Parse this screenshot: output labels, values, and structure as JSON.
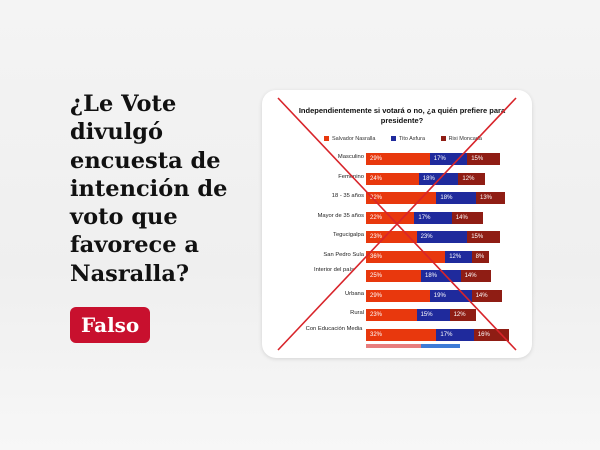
{
  "headline": "¿Le Vote divulgó encuesta de intención de voto que favorece a Nasralla?",
  "verdict": "Falso",
  "card": {
    "title": "Independientemente si votará o no, ¿a quién prefiere para presidente?",
    "legend": [
      {
        "label": "Salvador Nasralla",
        "color": "#e8380d"
      },
      {
        "label": "Tito Asfura",
        "color": "#1f2a9c"
      },
      {
        "label": "Rixi Moncada",
        "color": "#8f1d14"
      }
    ],
    "rows": [
      {
        "label": "Masculino",
        "values": [
          "29%",
          "17%",
          "15%"
        ],
        "shares": [
          29,
          17,
          15
        ]
      },
      {
        "label": "Femenino",
        "values": [
          "24%",
          "18%",
          "12%"
        ],
        "shares": [
          24,
          18,
          12
        ]
      },
      {
        "label": "18 - 35 años",
        "values": [
          "32%",
          "18%",
          "13%"
        ],
        "shares": [
          32,
          18,
          13
        ]
      },
      {
        "label": "Mayor de 35 años",
        "values": [
          "22%",
          "17%",
          "14%"
        ],
        "shares": [
          22,
          17,
          14
        ]
      },
      {
        "label": "Tegucigalpa",
        "values": [
          "23%",
          "23%",
          "15%"
        ],
        "shares": [
          23,
          23,
          15
        ]
      },
      {
        "label": "San Pedro Sula",
        "values": [
          "36%",
          "12%",
          "8%"
        ],
        "shares": [
          36,
          12,
          8
        ]
      },
      {
        "label": "Interior del país",
        "values": [
          "25%",
          "18%",
          "14%"
        ],
        "shares": [
          25,
          18,
          14
        ]
      },
      {
        "label": "Urbana",
        "values": [
          "29%",
          "19%",
          "14%"
        ],
        "shares": [
          29,
          19,
          14
        ]
      },
      {
        "label": "Rural",
        "values": [
          "23%",
          "15%",
          "12%"
        ],
        "shares": [
          23,
          15,
          12
        ]
      },
      {
        "label": "Con Educación Media",
        "values": [
          "32%",
          "17%",
          "16%"
        ],
        "shares": [
          32,
          17,
          16
        ]
      }
    ],
    "cross_color": "#d8242a"
  }
}
